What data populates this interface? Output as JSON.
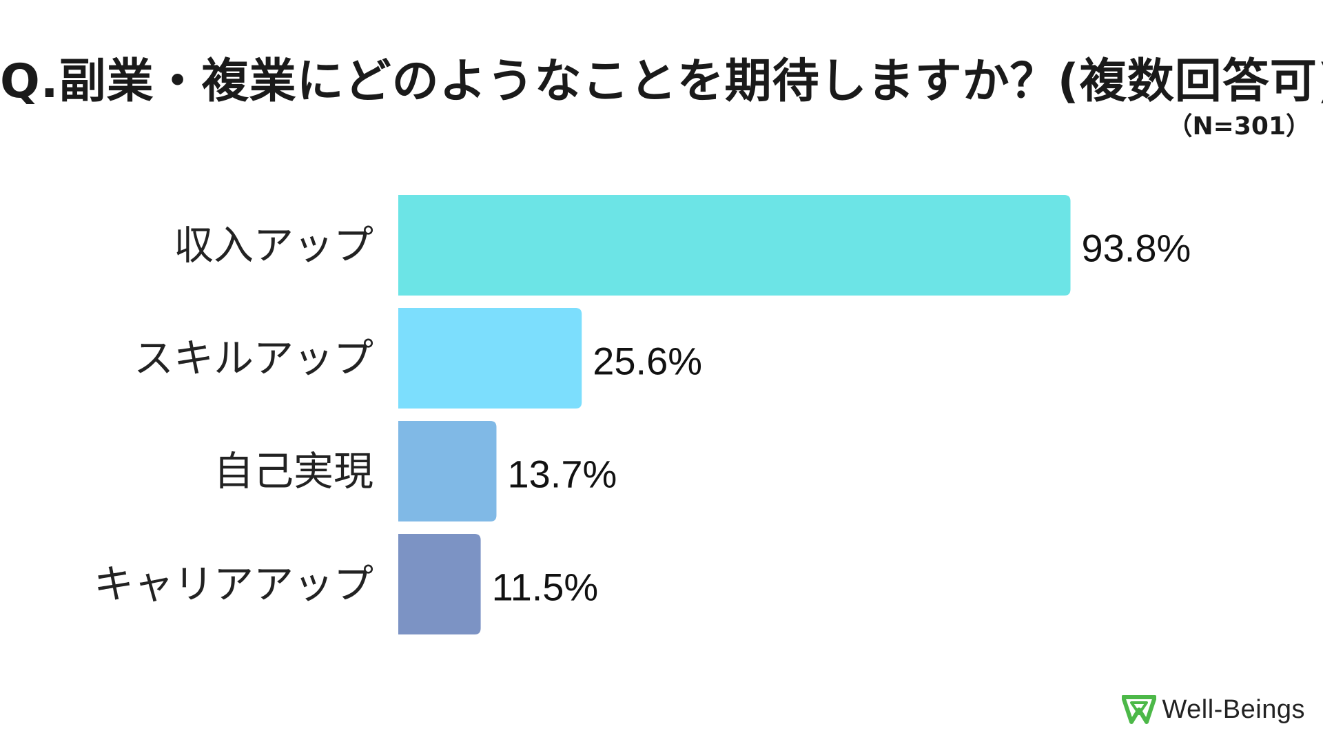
{
  "header": {
    "title": "Q.副業・複業にどのようなことを期待しますか？(複数回答可)",
    "sample_size": "（N=301）"
  },
  "brand": {
    "name": "Well-Beings",
    "mark_icon": "well-beings-logo-mark",
    "mark_color": "#4cb848"
  },
  "chart_data": {
    "type": "bar",
    "orientation": "horizontal",
    "categories": [
      "収入アップ",
      "スキルアップ",
      "自己実現",
      "キャリアアップ"
    ],
    "values": [
      93.8,
      25.6,
      13.7,
      11.5
    ],
    "value_labels": [
      "93.8%",
      "25.6%",
      "13.7%",
      "11.5%"
    ],
    "colors": [
      "#6ce4e6",
      "#7cdefd",
      "#80b9e6",
      "#7c93c4"
    ],
    "unit": "%",
    "xlim": [
      0,
      100
    ],
    "grid": false,
    "legend": "none"
  }
}
